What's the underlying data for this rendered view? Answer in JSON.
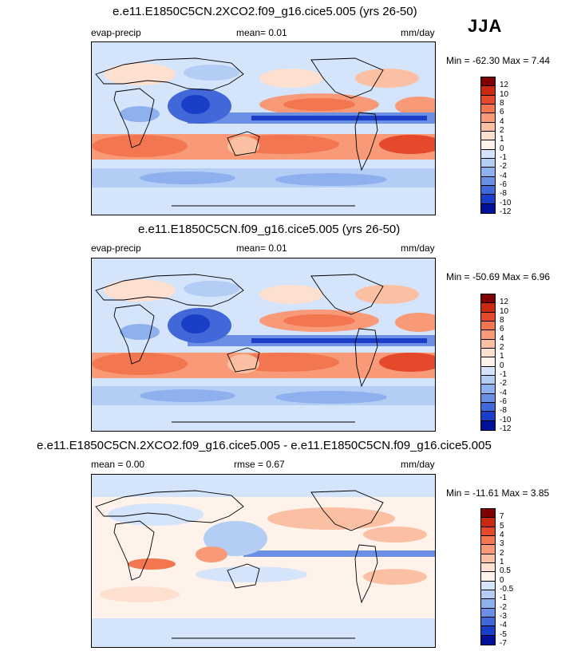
{
  "season": "JJA",
  "panels": [
    {
      "title": "e.e11.E1850C5CN.2XCO2.f09_g16.cice5.005 (yrs 26-50)",
      "left_label": "evap-precip",
      "mean": "mean=   0.01",
      "units": "mm/day",
      "minmax": "Min = -62.30 Max =   7.44",
      "colorbar": [
        "12",
        "10",
        "8",
        "6",
        "4",
        "2",
        "1",
        "0",
        "-1",
        "-2",
        "-4",
        "-6",
        "-8",
        "-10",
        "-12"
      ]
    },
    {
      "title": "e.e11.E1850C5CN.f09_g16.cice5.005 (yrs 26-50)",
      "left_label": "evap-precip",
      "mean": "mean=   0.01",
      "units": "mm/day",
      "minmax": "Min = -50.69 Max =   6.96",
      "colorbar": [
        "12",
        "10",
        "8",
        "6",
        "4",
        "2",
        "1",
        "0",
        "-1",
        "-2",
        "-4",
        "-6",
        "-8",
        "-10",
        "-12"
      ]
    },
    {
      "title": "e.e11.E1850C5CN.2XCO2.f09_g16.cice5.005 - e.e11.E1850C5CN.f09_g16.cice5.005",
      "left_label": "mean =   0.00",
      "mean": "rmse =   0.67",
      "units": "mm/day",
      "minmax": "Min = -11.61 Max =   3.85",
      "colorbar": [
        "7",
        "5",
        "4",
        "3",
        "2",
        "1",
        "0.5",
        "0",
        "-0.5",
        "-1",
        "-2",
        "-3",
        "-4",
        "-5",
        "-7"
      ]
    }
  ],
  "colors": [
    "#7f0000",
    "#c8290f",
    "#e3492a",
    "#f2764f",
    "#f89a78",
    "#fbbfa3",
    "#fde0cf",
    "#fef2ea",
    "#d4e4fb",
    "#b4cdf5",
    "#8fb0ee",
    "#6a8fe4",
    "#4267d8",
    "#1a3ec8",
    "#00109a"
  ],
  "chart_data": [
    {
      "type": "heatmap",
      "title": "e.e11.E1850C5CN.2XCO2.f09_g16.cice5.005 (yrs 26-50)",
      "variable": "evap-precip",
      "units": "mm/day",
      "mean": 0.01,
      "min": -62.3,
      "max": 7.44,
      "levels": [
        -12,
        -10,
        -8,
        -6,
        -4,
        -2,
        -1,
        0,
        1,
        2,
        4,
        6,
        8,
        10,
        12
      ]
    },
    {
      "type": "heatmap",
      "title": "e.e11.E1850C5CN.f09_g16.cice5.005 (yrs 26-50)",
      "variable": "evap-precip",
      "units": "mm/day",
      "mean": 0.01,
      "min": -50.69,
      "max": 6.96,
      "levels": [
        -12,
        -10,
        -8,
        -6,
        -4,
        -2,
        -1,
        0,
        1,
        2,
        4,
        6,
        8,
        10,
        12
      ]
    },
    {
      "type": "heatmap",
      "title": "e.e11.E1850C5CN.2XCO2.f09_g16.cice5.005 - e.e11.E1850C5CN.f09_g16.cice5.005",
      "units": "mm/day",
      "mean": 0.0,
      "rmse": 0.67,
      "min": -11.61,
      "max": 3.85,
      "levels": [
        -7,
        -5,
        -4,
        -3,
        -2,
        -1,
        -0.5,
        0,
        0.5,
        1,
        2,
        3,
        4,
        5,
        7
      ]
    }
  ]
}
